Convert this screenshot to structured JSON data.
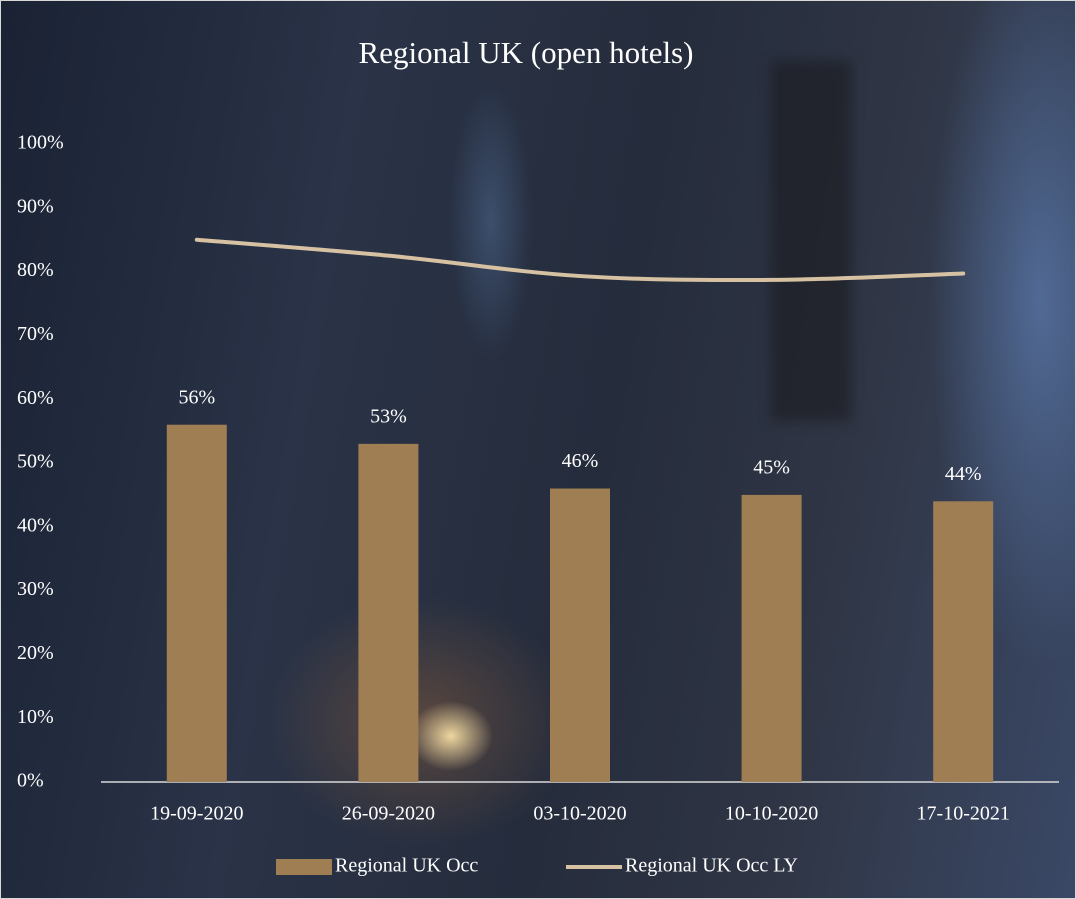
{
  "chart_data": {
    "type": "bar",
    "title": "Regional UK (open hotels)",
    "categories": [
      "19-09-2020",
      "26-09-2020",
      "03-10-2020",
      "10-10-2020",
      "17-10-2021"
    ],
    "series": [
      {
        "name": "Regional UK Occ",
        "type": "bar",
        "color": "#a07e54",
        "values": [
          56,
          53,
          46,
          45,
          44
        ],
        "value_labels": [
          "56%",
          "53%",
          "46%",
          "45%",
          "44%"
        ]
      },
      {
        "name": "Regional UK Occ LY",
        "type": "line",
        "color": "#d6c2a2",
        "values": [
          85,
          82.5,
          79.3,
          78.7,
          79.7
        ]
      }
    ],
    "ylim": [
      0,
      100
    ],
    "yticks": [
      {
        "value": 0,
        "label": "0%"
      },
      {
        "value": 10,
        "label": "10%"
      },
      {
        "value": 20,
        "label": "20%"
      },
      {
        "value": 30,
        "label": "30%"
      },
      {
        "value": 40,
        "label": "40%"
      },
      {
        "value": 50,
        "label": "50%"
      },
      {
        "value": 60,
        "label": "60%"
      },
      {
        "value": 70,
        "label": "70%"
      },
      {
        "value": 80,
        "label": "80%"
      },
      {
        "value": 90,
        "label": "90%"
      },
      {
        "value": 100,
        "label": "100%"
      }
    ],
    "grid": false,
    "legend": "bottom"
  }
}
